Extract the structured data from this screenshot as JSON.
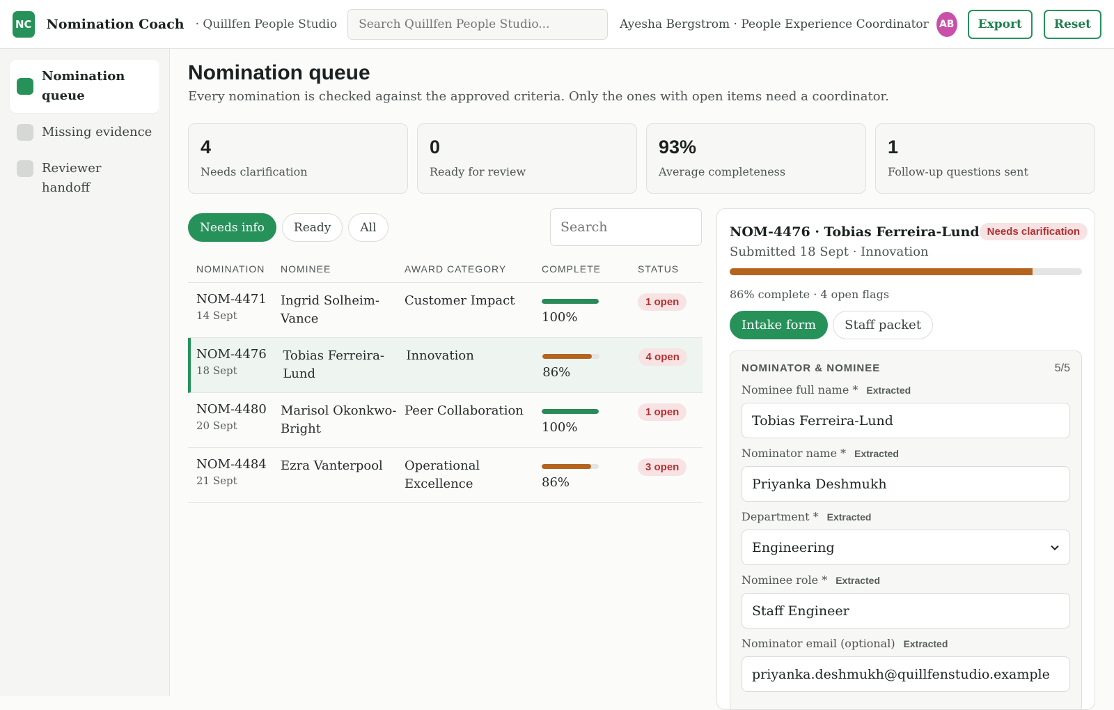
{
  "header": {
    "logo_text": "NC",
    "app_title": "Nomination Coach",
    "org_name": "· Quillfen People Studio",
    "search_placeholder": "Search Quillfen People Studio...",
    "user": "Ayesha Bergstrom · People Experience Coordinator",
    "avatar_initials": "AB",
    "export_label": "Export",
    "reset_label": "Reset"
  },
  "sidebar": {
    "items": [
      {
        "label": "Nomination queue",
        "active": true
      },
      {
        "label": "Missing evidence",
        "active": false
      },
      {
        "label": "Reviewer handoff",
        "active": false
      }
    ]
  },
  "main": {
    "title": "Nomination queue",
    "description": "Every nomination is checked against the approved criteria. Only the ones with open items need a coordinator.",
    "stats": [
      {
        "value": "4",
        "label": "Needs clarification"
      },
      {
        "value": "0",
        "label": "Ready for review"
      },
      {
        "value": "93%",
        "label": "Average completeness"
      },
      {
        "value": "1",
        "label": "Follow-up questions sent"
      }
    ],
    "filters": [
      "Needs info",
      "Ready",
      "All"
    ],
    "search_placeholder": "Search",
    "table": {
      "headers": [
        "Nomination",
        "Nominee",
        "Award category",
        "Complete",
        "Status"
      ],
      "rows": [
        {
          "id": "NOM-4471",
          "date": "14 Sept",
          "nominee": "Ingrid Solheim-Vance",
          "category": "Customer Impact",
          "complete": "100%",
          "complete_value": 1.0,
          "status": "1 open"
        },
        {
          "id": "NOM-4476",
          "date": "18 Sept",
          "nominee": "Tobias Ferreira-Lund",
          "category": "Innovation",
          "complete": "86%",
          "complete_value": 0.86,
          "status": "4 open"
        },
        {
          "id": "NOM-4480",
          "date": "20 Sept",
          "nominee": "Marisol Okonkwo-Bright",
          "category": "Peer Collaboration",
          "complete": "100%",
          "complete_value": 1.0,
          "status": "1 open"
        },
        {
          "id": "NOM-4484",
          "date": "21 Sept",
          "nominee": "Ezra Vanterpool",
          "category": "Operational Excellence",
          "complete": "86%",
          "complete_value": 0.86,
          "status": "3 open"
        }
      ]
    }
  },
  "detail": {
    "title": "NOM-4476 · Tobias Ferreira-Lund",
    "badge": "Needs clarification",
    "subtitle": "Submitted 18 Sept · Innovation",
    "progress": 0.86,
    "meta": "86% complete · 4 open flags",
    "tabs": [
      "Intake form",
      "Staff packet"
    ],
    "section_title": "Nominator & nominee",
    "section_count": "5/5",
    "fields": [
      {
        "label": "Nominee full name *",
        "tag": "Extracted",
        "value": "Tobias Ferreira-Lund"
      },
      {
        "label": "Nominator name *",
        "tag": "Extracted",
        "value": "Priyanka Deshmukh"
      },
      {
        "label": "Department *",
        "tag": "Extracted",
        "value": "Engineering"
      },
      {
        "label": "Nominee role *",
        "tag": "Extracted",
        "value": "Staff Engineer"
      },
      {
        "label": "Nominator email (optional)",
        "tag": "Extracted",
        "value": "priyanka.deshmukh@quillfenstudio.example"
      }
    ]
  },
  "colors": {
    "accent": "#26925a",
    "warning": "#b3641f",
    "danger": "#b23131",
    "avatar": "#c94fa9"
  }
}
